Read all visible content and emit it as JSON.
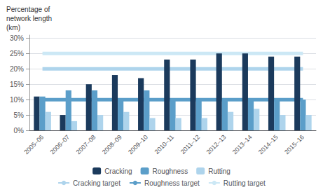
{
  "chart_data": {
    "type": "bar",
    "ylabel": "Percentage of\nnetwork length\n(km)",
    "categories": [
      "2005–06",
      "2006–07",
      "2007–08",
      "2008–09",
      "2009–10",
      "2010–11",
      "2011–12",
      "2012–13",
      "2013–14",
      "2014–15",
      "2015–16"
    ],
    "series": [
      {
        "name": "Cracking",
        "color": "#1b3a5c",
        "values": [
          11,
          5,
          15,
          18,
          17,
          23,
          23,
          25,
          25,
          24,
          24
        ]
      },
      {
        "name": "Roughness",
        "color": "#5b9ec9",
        "values": [
          11,
          13,
          13,
          10,
          13,
          10,
          10,
          10,
          10,
          10,
          10
        ]
      },
      {
        "name": "Rutting",
        "color": "#aed4ec",
        "values": [
          6,
          3,
          5,
          6,
          4,
          4,
          4,
          6,
          7,
          5,
          5
        ]
      },
      {
        "name": "Cracking target",
        "type": "line",
        "color": "#aed4ec",
        "values": [
          20,
          20,
          20,
          20,
          20,
          20,
          20,
          20,
          20,
          20,
          20
        ]
      },
      {
        "name": "Roughness target",
        "type": "line",
        "color": "#5b9ec9",
        "values": [
          10,
          10,
          10,
          10,
          10,
          10,
          10,
          10,
          10,
          10,
          10
        ]
      },
      {
        "name": "Rutting target",
        "type": "line",
        "color": "#cce8f5",
        "values": [
          25,
          25,
          25,
          25,
          25,
          25,
          25,
          25,
          25,
          25,
          25
        ]
      }
    ],
    "ylim": [
      0,
      31
    ],
    "yticks": [
      {
        "value": 0,
        "label": "0%"
      },
      {
        "value": 5,
        "label": "5%"
      },
      {
        "value": 10,
        "label": "10%"
      },
      {
        "value": 15,
        "label": "15%"
      },
      {
        "value": 20,
        "label": "20%"
      },
      {
        "value": 25,
        "label": "25%"
      },
      {
        "value": 30,
        "label": "30%"
      }
    ],
    "grid": true,
    "legend": "bottom"
  }
}
